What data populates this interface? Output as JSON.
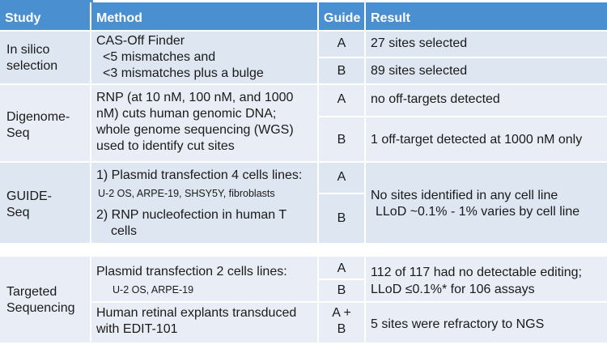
{
  "header": {
    "study": "Study",
    "method": "Method",
    "guide": "Guide",
    "result": "Result"
  },
  "rows": {
    "in_silico": {
      "study": [
        "In silico",
        "selection"
      ],
      "method": [
        "CAS-Off Finder",
        "<5 mismatches and",
        "<3 mismatches plus a bulge"
      ],
      "guide_a": "A",
      "guide_b": "B",
      "result_a": "27 sites selected",
      "result_b": "89 sites selected"
    },
    "digenome": {
      "study": [
        "Digenome-",
        "Seq"
      ],
      "method": [
        "RNP (at 10 nM, 100 nM, and 1000",
        "nM) cuts human genomic DNA;",
        "whole genome sequencing (WGS)",
        "used to identify cut sites"
      ],
      "guide_a": "A",
      "guide_b": "B",
      "result_a": "no off-targets detected",
      "result_b": "1 off-target detected at 1000 nM only"
    },
    "guide_seq": {
      "study": [
        "GUIDE-",
        "Seq"
      ],
      "method_a": [
        "1) Plasmid transfection 4 cells lines:",
        "U-2 OS, ARPE-19, SHSY5Y, fibroblasts"
      ],
      "method_b": [
        "2) RNP nucleofection in human T",
        "cells"
      ],
      "guide_a": "A",
      "guide_b": "B",
      "result": [
        "No sites identified in any cell line",
        "LLoD ~0.1% - 1% varies by cell line"
      ]
    },
    "targeted": {
      "study": [
        "Targeted",
        "Sequencing"
      ],
      "method_a": [
        "Plasmid transfection 2 cells lines:",
        "U-2 OS, ARPE-19"
      ],
      "method_b": [
        "Human retinal explants transduced",
        "with EDIT-101"
      ],
      "guide_a": "A",
      "guide_b": "B",
      "guide_c": [
        "A +",
        "B"
      ],
      "result_a": [
        "112 of 117 had no detectable editing;",
        "LLoD ≤0.1%* for 106 assays"
      ],
      "result_b": "5 sites were refractory to NGS"
    }
  }
}
